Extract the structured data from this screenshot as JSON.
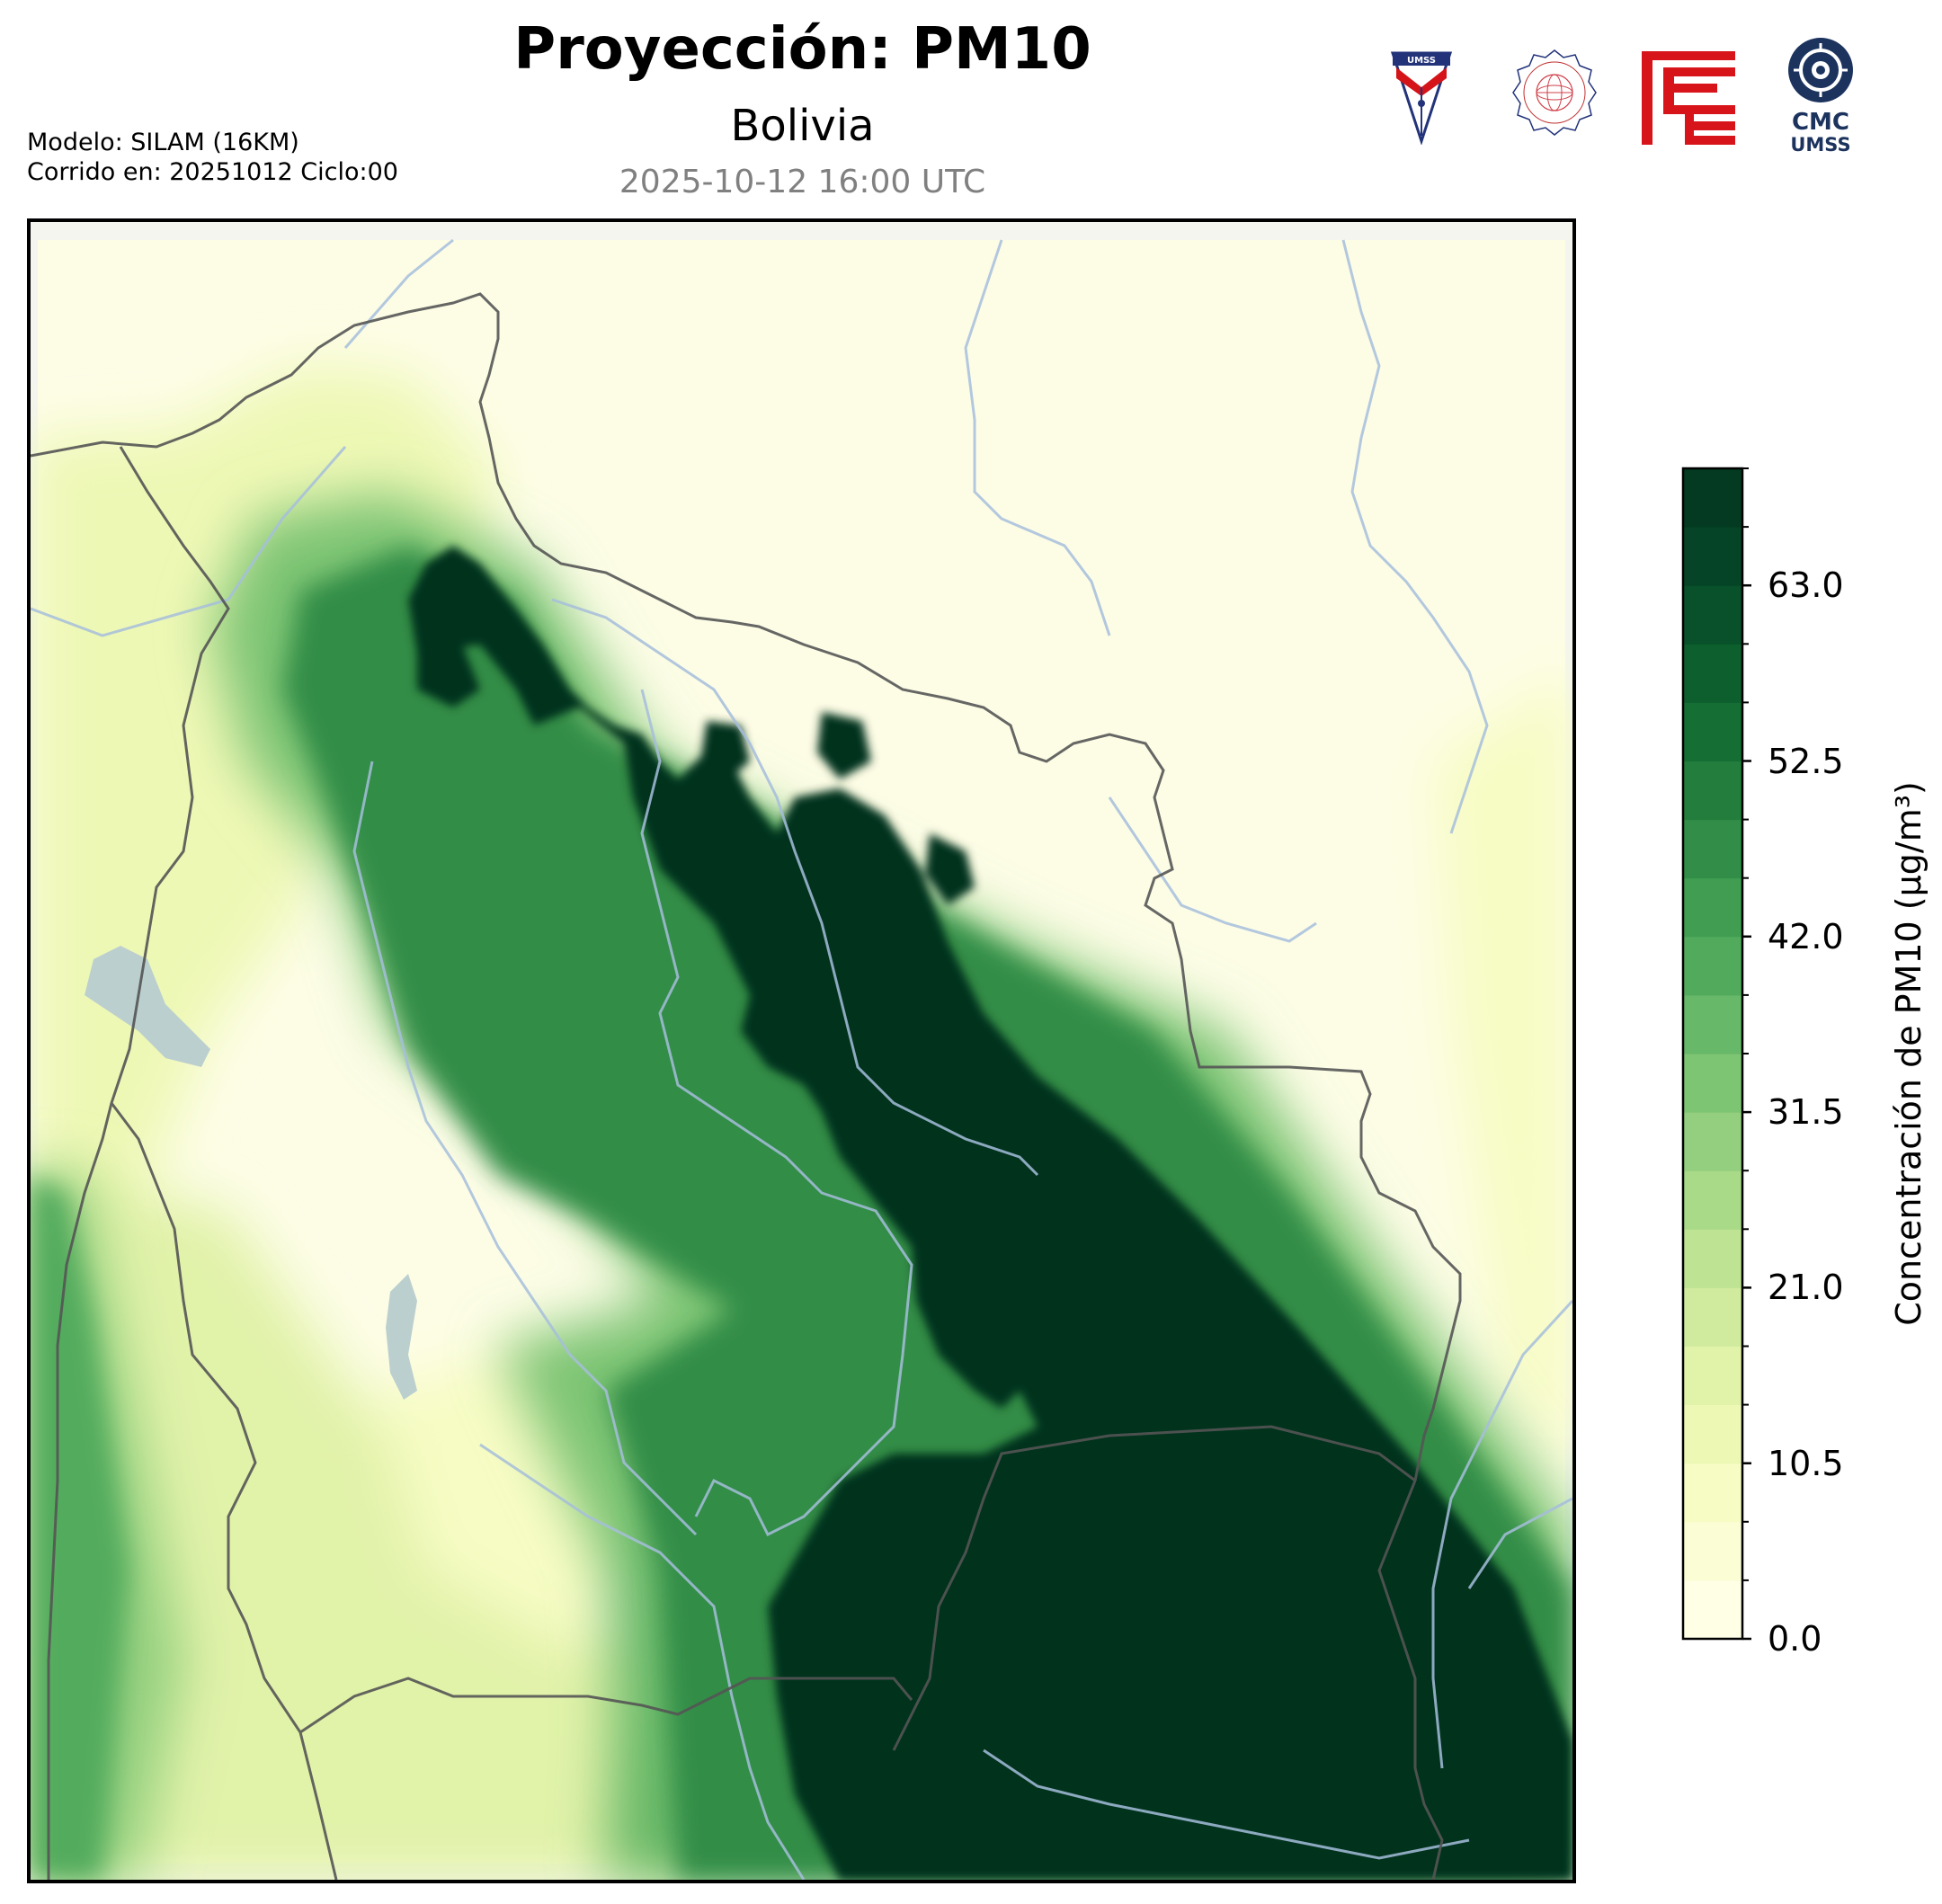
{
  "header": {
    "title": "Proyección: PM10",
    "subtitle": "Bolivia",
    "timestamp": "2025-10-12 16:00 UTC"
  },
  "model_info": {
    "line1": "Modelo: SILAM (16KM)",
    "line2": "Corrido en: 20251012 Ciclo:00"
  },
  "logos": {
    "umss_shield_text": "UMSS",
    "cmc_line1": "CMC",
    "cmc_line2": "UMSS",
    "fisica_seal_text": "DEPARTAMENTO DE FÍSICA"
  },
  "colorbar": {
    "label": "Concentración de PM10 (µg/m³)",
    "min": 0,
    "max": 70,
    "tick_labels": [
      "0.0",
      "10.5",
      "21.0",
      "31.5",
      "42.0",
      "52.5",
      "63.0"
    ],
    "tick_values": [
      0,
      10.5,
      21,
      31.5,
      42,
      52.5,
      63
    ],
    "levels": [
      0,
      3.5,
      7,
      10.5,
      14,
      17.5,
      21,
      24.5,
      28,
      31.5,
      35,
      38.5,
      42,
      45.5,
      49,
      52.5,
      56,
      59.5,
      63,
      66.5,
      70
    ],
    "colors": [
      "#ffffe5",
      "#fbfdd5",
      "#f7fcc4",
      "#eef8b5",
      "#e1f2a9",
      "#d0eb9e",
      "#bde393",
      "#a9da88",
      "#93cf7e",
      "#7dc473",
      "#67b868",
      "#52ab5d",
      "#409d52",
      "#318d47",
      "#237d3c",
      "#156e33",
      "#0d5f2d",
      "#08512a",
      "#054426",
      "#033a21",
      "#00331f"
    ]
  },
  "colors": {
    "dark_plume": "#00301e",
    "country_border": "#555555",
    "rivers": "#a6bedc",
    "lakes": "#bccfcf",
    "umss_red": "#d41418",
    "umss_blue": "#22337a",
    "cmc_navy": "#1c335e",
    "red_logo": "#d7141a"
  }
}
